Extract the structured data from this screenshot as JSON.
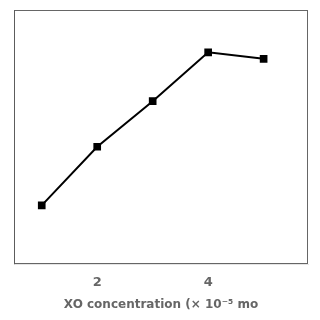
{
  "chart_data": {
    "type": "line",
    "x_label": "XO concentration (× 10⁻⁵ mo",
    "x": [
      1.0,
      2.0,
      3.0,
      4.0,
      5.0
    ],
    "values": [
      0.28,
      0.46,
      0.6,
      0.75,
      0.73
    ],
    "color": "#000000",
    "marker": "square",
    "xlim": [
      0.5,
      5.8
    ],
    "ylim": [
      0.1,
      0.88
    ],
    "xticks": [
      2,
      4
    ],
    "tick_labels": "x",
    "grid": false
  }
}
